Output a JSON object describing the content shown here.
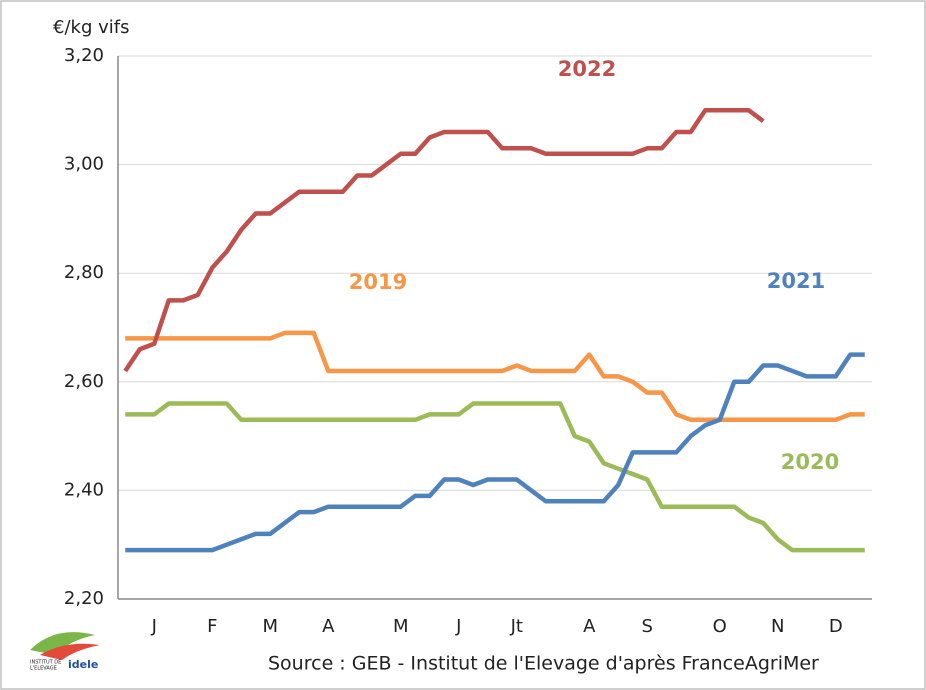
{
  "chart_data": {
    "type": "line",
    "y_unit_label": "€/kg vifs",
    "source": "Source : GEB - Institut de l'Elevage d'après FranceAgriMer",
    "logo": [
      "INSTITUT DE",
      "L'ELEVAGE",
      "idele"
    ],
    "x": [
      1,
      2,
      3,
      4,
      5,
      6,
      7,
      8,
      9,
      10,
      11,
      12,
      13,
      14,
      15,
      16,
      17,
      18,
      19,
      20,
      21,
      22,
      23,
      24,
      25,
      26,
      27,
      28,
      29,
      30,
      31,
      32,
      33,
      34,
      35,
      36,
      37,
      38,
      39,
      40,
      41,
      42,
      43,
      44,
      45,
      46,
      47,
      48,
      49,
      50,
      51,
      52
    ],
    "xlim": [
      0.5,
      52.5
    ],
    "xticks": [
      {
        "value": 3,
        "label": "J"
      },
      {
        "value": 7,
        "label": "F"
      },
      {
        "value": 11,
        "label": "M"
      },
      {
        "value": 15,
        "label": "A"
      },
      {
        "value": 20,
        "label": "M"
      },
      {
        "value": 24,
        "label": "J"
      },
      {
        "value": 28,
        "label": "Jt"
      },
      {
        "value": 33,
        "label": "A"
      },
      {
        "value": 37,
        "label": "S"
      },
      {
        "value": 42,
        "label": "O"
      },
      {
        "value": 46,
        "label": "N"
      },
      {
        "value": 50,
        "label": "D"
      }
    ],
    "ylim": [
      2.2,
      3.2
    ],
    "yticks": [
      {
        "value": 2.2,
        "label": "2,20"
      },
      {
        "value": 2.4,
        "label": "2,40"
      },
      {
        "value": 2.6,
        "label": "2,60"
      },
      {
        "value": 2.8,
        "label": "2,80"
      },
      {
        "value": 3.0,
        "label": "3,00"
      },
      {
        "value": 3.2,
        "label": "3,20"
      }
    ],
    "grid": true,
    "series": [
      {
        "name": "2019",
        "color": "#f79646",
        "values": [
          2.68,
          2.68,
          2.68,
          2.68,
          2.68,
          2.68,
          2.68,
          2.68,
          2.68,
          2.68,
          2.68,
          2.69,
          2.69,
          2.69,
          2.62,
          2.62,
          2.62,
          2.62,
          2.62,
          2.62,
          2.62,
          2.62,
          2.62,
          2.62,
          2.62,
          2.62,
          2.62,
          2.63,
          2.62,
          2.62,
          2.62,
          2.62,
          2.65,
          2.61,
          2.61,
          2.6,
          2.58,
          2.58,
          2.54,
          2.53,
          2.53,
          2.53,
          2.53,
          2.53,
          2.53,
          2.53,
          2.53,
          2.53,
          2.53,
          2.53,
          2.54,
          2.54
        ]
      },
      {
        "name": "2020",
        "color": "#9bbb59",
        "values": [
          2.54,
          2.54,
          2.54,
          2.56,
          2.56,
          2.56,
          2.56,
          2.56,
          2.53,
          2.53,
          2.53,
          2.53,
          2.53,
          2.53,
          2.53,
          2.53,
          2.53,
          2.53,
          2.53,
          2.53,
          2.53,
          2.54,
          2.54,
          2.54,
          2.56,
          2.56,
          2.56,
          2.56,
          2.56,
          2.56,
          2.56,
          2.5,
          2.49,
          2.45,
          2.44,
          2.43,
          2.42,
          2.37,
          2.37,
          2.37,
          2.37,
          2.37,
          2.37,
          2.35,
          2.34,
          2.31,
          2.29,
          2.29,
          2.29,
          2.29,
          2.29,
          2.29
        ]
      },
      {
        "name": "2021",
        "color": "#4f81bd",
        "values": [
          2.29,
          2.29,
          2.29,
          2.29,
          2.29,
          2.29,
          2.29,
          2.3,
          2.31,
          2.32,
          2.32,
          2.34,
          2.36,
          2.36,
          2.37,
          2.37,
          2.37,
          2.37,
          2.37,
          2.37,
          2.39,
          2.39,
          2.42,
          2.42,
          2.41,
          2.42,
          2.42,
          2.42,
          2.4,
          2.38,
          2.38,
          2.38,
          2.38,
          2.38,
          2.41,
          2.47,
          2.47,
          2.47,
          2.47,
          2.5,
          2.52,
          2.53,
          2.6,
          2.6,
          2.63,
          2.63,
          2.62,
          2.61,
          2.61,
          2.61,
          2.65,
          2.65
        ]
      },
      {
        "name": "2022",
        "color": "#c0504d",
        "values": [
          2.62,
          2.66,
          2.67,
          2.75,
          2.75,
          2.76,
          2.81,
          2.84,
          2.88,
          2.91,
          2.91,
          2.93,
          2.95,
          2.95,
          2.95,
          2.95,
          2.98,
          2.98,
          3.0,
          3.02,
          3.02,
          3.05,
          3.06,
          3.06,
          3.06,
          3.06,
          3.03,
          3.03,
          3.03,
          3.02,
          3.02,
          3.02,
          3.02,
          3.02,
          3.02,
          3.02,
          3.03,
          3.03,
          3.06,
          3.06,
          3.1,
          3.1,
          3.1,
          3.1,
          3.08,
          null,
          null,
          null,
          null,
          null,
          null,
          null
        ]
      }
    ]
  }
}
